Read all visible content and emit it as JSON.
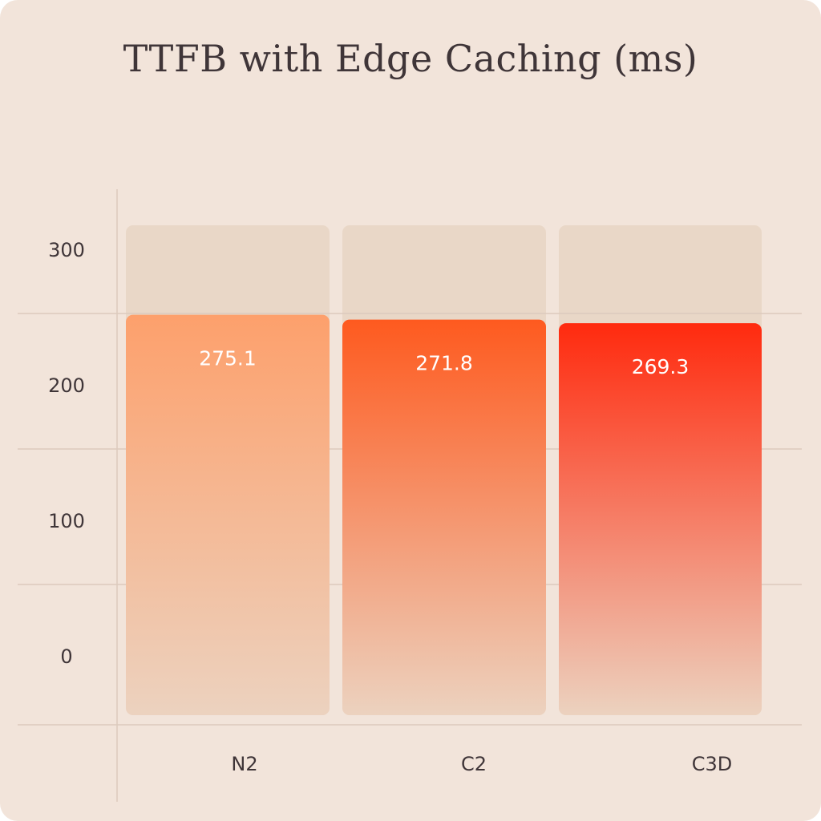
{
  "colors": {
    "background": "#f2e4da",
    "track": "#e9d7c7",
    "grid": "#dccabd",
    "text": "#3f3538",
    "value_label": "#ffffff",
    "bar_tops": [
      "#fda06c",
      "#fe5a1f",
      "#ff2a0e"
    ],
    "bar_bottom": "#ecd2bf"
  },
  "chart_data": {
    "type": "bar",
    "title": "TTFB with Edge Caching (ms)",
    "xlabel": "",
    "ylabel": "",
    "categories": [
      "N2",
      "C2",
      "C3D"
    ],
    "values": [
      275.1,
      271.8,
      269.3
    ],
    "value_labels": [
      "275.1",
      "271.8",
      "269.3"
    ],
    "y_ticks": [
      0,
      100,
      200,
      300
    ],
    "y_tick_labels": [
      "0",
      "100",
      "200",
      "300"
    ],
    "grid": true,
    "legend": "none"
  }
}
